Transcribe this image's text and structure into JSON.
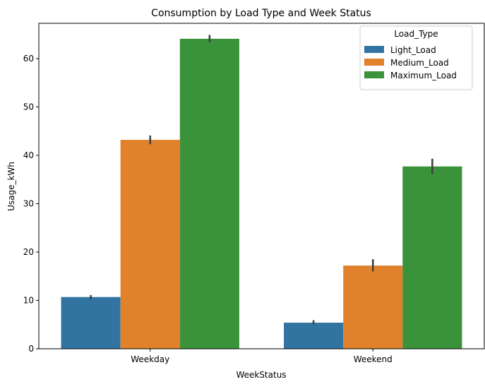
{
  "chart_data": {
    "type": "bar",
    "title": "Consumption by Load Type and Week Status",
    "xlabel": "WeekStatus",
    "ylabel": "Usage_kWh",
    "categories": [
      "Weekday",
      "Weekend"
    ],
    "ylim": [
      0,
      67.3
    ],
    "yticks": [
      0,
      10,
      20,
      30,
      40,
      50,
      60
    ],
    "grid": false,
    "legend": {
      "title": "Load_Type",
      "position": "top-right"
    },
    "series": [
      {
        "name": "Light_Load",
        "color": "#3274a1",
        "values": [
          10.7,
          5.4
        ],
        "errors": [
          [
            10.2,
            11.1
          ],
          [
            5.0,
            5.9
          ]
        ]
      },
      {
        "name": "Medium_Load",
        "color": "#e1812c",
        "values": [
          43.2,
          17.2
        ],
        "errors": [
          [
            42.3,
            44.1
          ],
          [
            16.0,
            18.5
          ]
        ]
      },
      {
        "name": "Maximum_Load",
        "color": "#3a923a",
        "values": [
          64.1,
          37.7
        ],
        "errors": [
          [
            63.4,
            64.9
          ],
          [
            36.1,
            39.3
          ]
        ]
      }
    ]
  }
}
